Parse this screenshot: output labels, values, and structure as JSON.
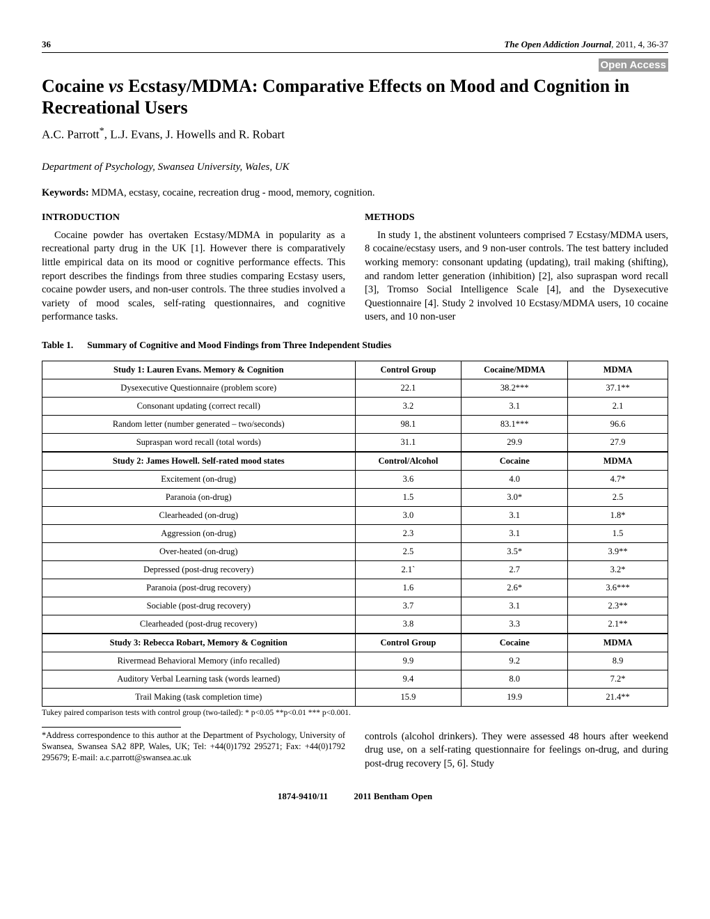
{
  "header": {
    "page": "36",
    "journal_italic": "The Open Addiction Journal",
    "journal_rest": ", 2011, 4, 36-37",
    "open_access": "Open Access"
  },
  "title_pre": "Cocaine ",
  "title_vs": "vs",
  "title_post": " Ecstasy/MDMA: Comparative Effects on Mood and Cognition in Recreational Users",
  "authors": "A.C. Parrott*, L.J. Evans, J. Howells and R. Robart",
  "affiliation": "Department of Psychology, Swansea University, Wales, UK",
  "keywords_label": "Keywords:",
  "keywords_text": " MDMA, ecstasy, cocaine, recreation drug - mood, memory, cognition.",
  "intro_head": "INTRODUCTION",
  "intro_body": "Cocaine powder has overtaken Ecstasy/MDMA in popularity as a recreational party drug in the UK [1]. However there is comparatively little empirical data on its mood or cognitive performance effects. This report describes the findings from three studies comparing Ecstasy users, cocaine powder users, and non-user controls. The three studies involved a variety of mood scales, self-rating questionnaires, and cognitive performance tasks.",
  "methods_head": "METHODS",
  "methods_body": "In study 1, the abstinent volunteers comprised 7 Ecstasy/MDMA users, 8 cocaine/ecstasy users, and 9 non-user controls. The test battery included working memory: consonant updating (updating), trail making (shifting), and random letter generation (inhibition) [2], also supraspan word recall [3], Tromso Social Intelligence Scale [4], and the Dysexecutive Questionnaire [4]. Study 2 involved 10 Ecstasy/MDMA users, 10 cocaine users, and 10 non-user",
  "table": {
    "caption_num": "Table 1.",
    "caption_text": "Summary of Cognitive and Mood Findings from Three Independent Studies",
    "sections": [
      {
        "header": [
          "Study 1: Lauren Evans. Memory & Cognition",
          "Control Group",
          "Cocaine/MDMA",
          "MDMA"
        ],
        "rows": [
          [
            "Dysexecutive Questionnaire (problem score)",
            "22.1",
            "38.2***",
            "37.1**"
          ],
          [
            "Consonant updating (correct recall)",
            "3.2",
            "3.1",
            "2.1"
          ],
          [
            "Random letter (number generated – two/seconds)",
            "98.1",
            "83.1***",
            "96.6"
          ],
          [
            "Supraspan word recall (total words)",
            "31.1",
            "29.9",
            "27.9"
          ]
        ]
      },
      {
        "header": [
          "Study 2: James Howell. Self-rated mood states",
          "Control/Alcohol",
          "Cocaine",
          "MDMA"
        ],
        "rows": [
          [
            "Excitement (on-drug)",
            "3.6",
            "4.0",
            "4.7*"
          ],
          [
            "Paranoia (on-drug)",
            "1.5",
            "3.0*",
            "2.5"
          ],
          [
            "Clearheaded (on-drug)",
            "3.0",
            "3.1",
            "1.8*"
          ],
          [
            "Aggression (on-drug)",
            "2.3",
            "3.1",
            "1.5"
          ],
          [
            "Over-heated (on-drug)",
            "2.5",
            "3.5*",
            "3.9**"
          ],
          [
            "Depressed (post-drug recovery)",
            "2.1`",
            "2.7",
            "3.2*"
          ],
          [
            "Paranoia (post-drug recovery)",
            "1.6",
            "2.6*",
            "3.6***"
          ],
          [
            "Sociable (post-drug recovery)",
            "3.7",
            "3.1",
            "2.3**"
          ],
          [
            "Clearheaded (post-drug recovery)",
            "3.8",
            "3.3",
            "2.1**"
          ]
        ]
      },
      {
        "header": [
          "Study 3: Rebecca Robart, Memory & Cognition",
          "Control Group",
          "Cocaine",
          "MDMA"
        ],
        "rows": [
          [
            "Rivermead Behavioral Memory (info recalled)",
            "9.9",
            "9.2",
            "8.9"
          ],
          [
            "Auditory Verbal Learning task (words learned)",
            "9.4",
            "8.0",
            "7.2*"
          ],
          [
            "Trail Making (task completion time)",
            "15.9",
            "19.9",
            "21.4**"
          ]
        ]
      }
    ],
    "note": "Tukey paired comparison tests with control group (two-tailed): * p<0.05 **p<0.01 *** p<0.001.",
    "col_widths": [
      "50%",
      "17%",
      "17%",
      "16%"
    ]
  },
  "corr_note": "*Address correspondence to this author at the Department of Psychology, University of Swansea, Swansea SA2 8PP, Wales, UK; Tel: +44(0)1792 295271; Fax: +44(0)1792 295679; E-mail: a.c.parrott@swansea.ac.uk",
  "right_cont": "controls (alcohol drinkers). They were assessed 48 hours after weekend drug use, on a self-rating questionnaire for feelings on-drug, and during post-drug recovery [5, 6]. Study",
  "footer": {
    "issn": "1874-9410/11",
    "pub": "2011 Bentham Open"
  }
}
